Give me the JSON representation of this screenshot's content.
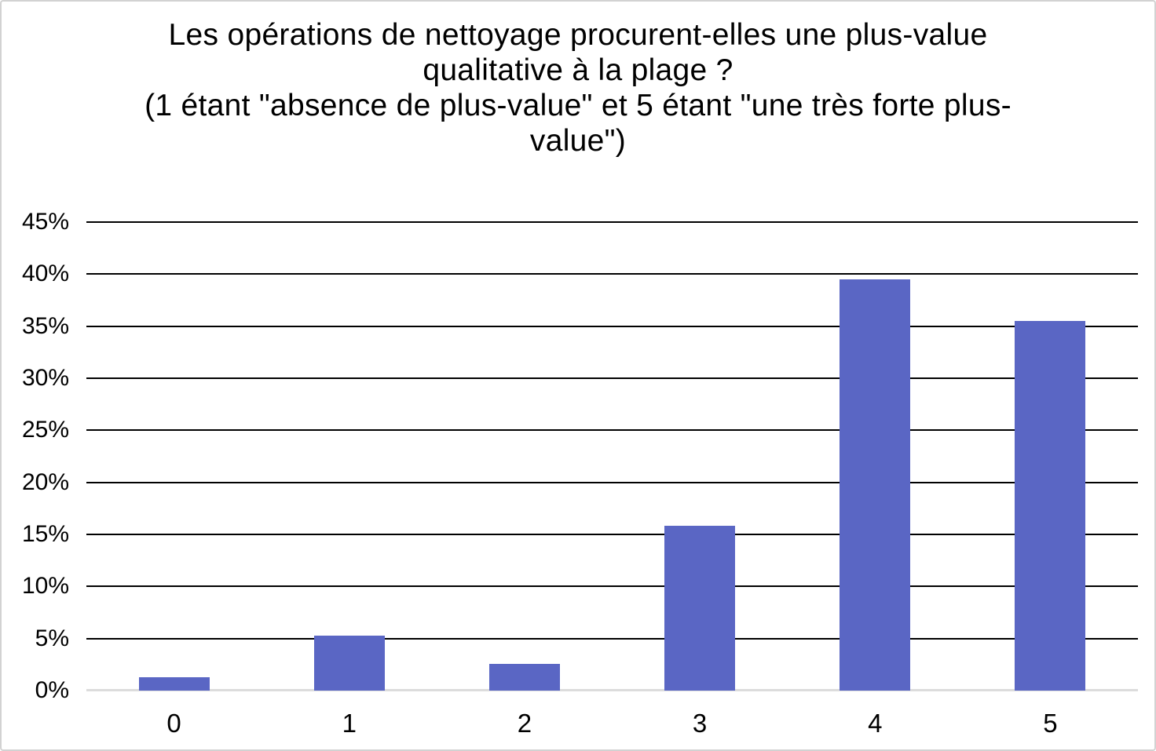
{
  "chart_data": {
    "type": "bar",
    "title": "Les opérations de nettoyage procurent-elles une plus-value qualitative à la plage ? (1 étant \"absence de plus-value\" et 5 étant \"une très forte plus-value\")",
    "title_lines": [
      "Les opérations de nettoyage procurent-elles une plus-value",
      "qualitative à la plage ?",
      "(1 étant \"absence de plus-value\" et 5 étant \"une très forte plus-",
      "value\")"
    ],
    "categories": [
      "0",
      "1",
      "2",
      "3",
      "4",
      "5"
    ],
    "values": [
      1.3,
      5.3,
      2.6,
      15.8,
      39.5,
      35.5
    ],
    "unit": "%",
    "xlabel": "",
    "ylabel": "",
    "ylim": [
      0,
      45
    ],
    "ytick_step": 5,
    "ytick_labels": [
      "0%",
      "5%",
      "10%",
      "15%",
      "20%",
      "25%",
      "30%",
      "35%",
      "40%",
      "45%"
    ],
    "grid": "horizontal-black",
    "legend": "none",
    "colors": {
      "bar": "#5A66C4",
      "gridline": "#000000",
      "baseline": "#DCDCDC",
      "text": "#000000",
      "background": "#FFFFFF",
      "border": "#D2D2D2"
    }
  }
}
